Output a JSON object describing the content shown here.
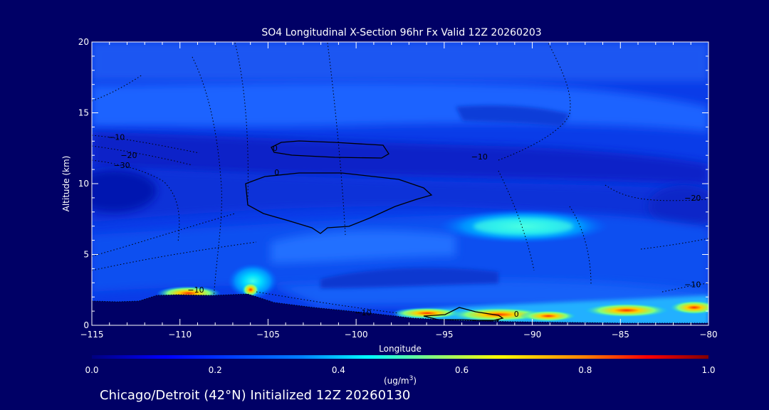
{
  "chart_data": {
    "type": "heatmap",
    "title": "SO4 Longitudinal X-Section 96hr  Fx Valid 12Z 20260203",
    "xlabel": "Longitude",
    "ylabel": "Altitude (km)",
    "xlim": [
      -115,
      -80
    ],
    "ylim": [
      0,
      20
    ],
    "x_ticks": [
      -115,
      -110,
      -105,
      -100,
      -95,
      -90,
      -85,
      -80
    ],
    "x_tick_labels": [
      "−115",
      "−110",
      "−105",
      "−100",
      "−95",
      "−90",
      "−85",
      "−80"
    ],
    "y_ticks": [
      0,
      5,
      10,
      15,
      20
    ],
    "y_tick_labels": [
      "0",
      "5",
      "10",
      "15",
      "20"
    ],
    "colorbar": {
      "min": 0.0,
      "max": 1.0,
      "ticks": [
        0.0,
        0.2,
        0.4,
        0.6,
        0.8,
        1.0
      ],
      "tick_labels": [
        "0.0",
        "0.2",
        "0.4",
        "0.6",
        "0.8",
        "1.0"
      ],
      "units_label": "(ug/m",
      "units_superscript": "3",
      "units_close": ")"
    },
    "contour_labels": [
      {
        "text": "0",
        "lon": -104.6,
        "alt": 12.3
      },
      {
        "text": "0",
        "lon": -104.5,
        "alt": 10.6
      },
      {
        "text": "0",
        "lon": -90.9,
        "alt": 0.6
      },
      {
        "text": "−10",
        "lon": -113.6,
        "alt": 13.1
      },
      {
        "text": "−20",
        "lon": -112.9,
        "alt": 11.8
      },
      {
        "text": "−30",
        "lon": -113.3,
        "alt": 11.1
      },
      {
        "text": "−10",
        "lon": -93.0,
        "alt": 11.7
      },
      {
        "text": "−10",
        "lon": -109.1,
        "alt": 2.3
      },
      {
        "text": "−10",
        "lon": -99.6,
        "alt": 0.7
      },
      {
        "text": "−20",
        "lon": -80.9,
        "alt": 8.8
      },
      {
        "text": "−10",
        "lon": -80.9,
        "alt": 2.7
      }
    ]
  },
  "footer": {
    "text": "Chicago/Detroit (42°N) Initialized 12Z 20260130"
  },
  "colors": {
    "background": "#000066",
    "terrain": "#000066",
    "text": "#ffffff",
    "contour": "#000000"
  }
}
